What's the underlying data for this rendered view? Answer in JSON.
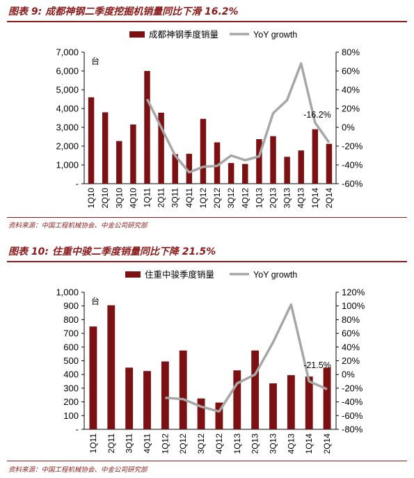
{
  "charts": [
    {
      "figure_title": "图表 9: 成都神钢二季度挖掘机销量同比下滑 16.2%",
      "source": "资料来源：中国工程机械协会、中金公司研究部"
    },
    {
      "figure_title": "图表 10: 住重中骏二季度销量同比下降 21.5%",
      "source": "资料来源：中国工程机械协会、中金公司研究部"
    }
  ],
  "colors": {
    "bar": "#7b1113",
    "line": "#a6a6a6",
    "title": "#8b1a1a"
  },
  "chart_data": [
    {
      "type": "bar",
      "categories": [
        "1Q10",
        "2Q10",
        "3Q10",
        "4Q10",
        "1Q11",
        "2Q11",
        "3Q11",
        "4Q11",
        "1Q12",
        "2Q12",
        "3Q12",
        "4Q12",
        "1Q13",
        "2Q13",
        "3Q13",
        "4Q13",
        "1Q14",
        "2Q14"
      ],
      "series": [
        {
          "name": "成都神钢季度销量",
          "type": "bar",
          "values": [
            4600,
            3800,
            2270,
            3150,
            6000,
            3780,
            1570,
            1590,
            3450,
            2200,
            1100,
            1050,
            2370,
            2530,
            1430,
            1770,
            2900,
            2120
          ]
        },
        {
          "name": "YoY growth",
          "type": "line",
          "axis": "right",
          "values": [
            null,
            null,
            null,
            null,
            30,
            0,
            -30,
            -48,
            -42,
            -41,
            -30,
            -35,
            -31,
            15,
            29,
            68,
            5,
            -16.2
          ]
        }
      ],
      "y_unit": "台",
      "ylim": [
        0,
        7000
      ],
      "y_ticks": [
        "-",
        "1,000",
        "2,000",
        "3,000",
        "4,000",
        "5,000",
        "6,000",
        "7,000"
      ],
      "y2lim": [
        -60,
        80
      ],
      "y2_ticks": [
        "-60%",
        "-40%",
        "-20%",
        "0%",
        "20%",
        "40%",
        "60%",
        "80%"
      ],
      "annotation": "-16.2%",
      "legend": "top"
    },
    {
      "type": "bar",
      "categories": [
        "1Q11",
        "2Q11",
        "3Q11",
        "4Q11",
        "1Q12",
        "2Q12",
        "3Q12",
        "4Q12",
        "1Q13",
        "2Q13",
        "3Q13",
        "4Q13",
        "1Q14",
        "2Q14"
      ],
      "series": [
        {
          "name": "住重中骏季度销量",
          "type": "bar",
          "values": [
            750,
            905,
            450,
            425,
            495,
            575,
            225,
            195,
            430,
            575,
            335,
            395,
            385,
            450
          ]
        },
        {
          "name": "YoY growth",
          "type": "line",
          "axis": "right",
          "values": [
            null,
            null,
            null,
            null,
            -34,
            -36,
            -47,
            -54,
            -13,
            0,
            47,
            102,
            -10,
            -21.5
          ]
        }
      ],
      "y_unit": "台",
      "ylim": [
        0,
        1000
      ],
      "y_ticks": [
        "-",
        "100",
        "200",
        "300",
        "400",
        "500",
        "600",
        "700",
        "800",
        "900",
        "1,000"
      ],
      "y2lim": [
        -80,
        120
      ],
      "y2_ticks": [
        "-80%",
        "-60%",
        "-40%",
        "-20%",
        "0%",
        "20%",
        "40%",
        "60%",
        "80%",
        "100%",
        "120%"
      ],
      "annotation": "-21.5%",
      "legend": "top"
    }
  ]
}
